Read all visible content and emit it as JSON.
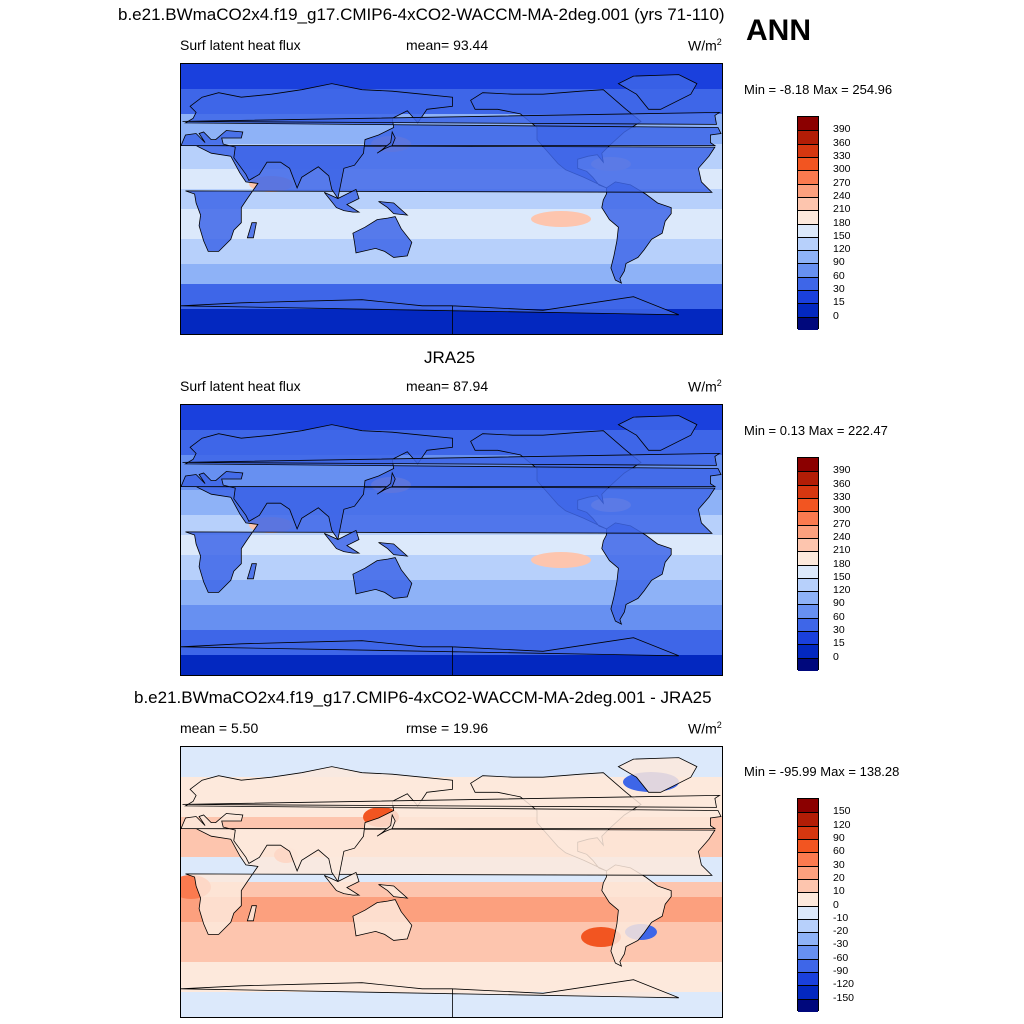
{
  "season": "ANN",
  "panels": [
    {
      "title": "b.e21.BWmaCO2x4.f19_g17.CMIP6-4xCO2-WACCM-MA-2deg.001 (yrs 71-110)",
      "left_label": "Surf latent heat flux",
      "center_label": "mean=  93.44",
      "units": "W/m",
      "units_sup": "2",
      "minmax": "Min =  -8.18 Max = 254.96",
      "colorbar_levels": [
        "390",
        "360",
        "330",
        "300",
        "270",
        "240",
        "210",
        "180",
        "150",
        "120",
        "90",
        "60",
        "30",
        "15",
        "0"
      ],
      "colorbar_colors": [
        "#8b0000",
        "#b21d06",
        "#d63710",
        "#f25521",
        "#fb7a4f",
        "#fca07e",
        "#fdc5ae",
        "#fde9dc",
        "#dce9fb",
        "#b7d0fb",
        "#8eb2f7",
        "#6790f1",
        "#3e66e8",
        "#1a40dd",
        "#0328c0",
        "#00087c"
      ],
      "scheme": "model"
    },
    {
      "title": "JRA25",
      "left_label": "Surf latent heat flux",
      "center_label": "mean=  87.94",
      "units": "W/m",
      "units_sup": "2",
      "minmax": "Min =   0.13 Max = 222.47",
      "colorbar_levels": [
        "390",
        "360",
        "330",
        "300",
        "270",
        "240",
        "210",
        "180",
        "150",
        "120",
        "90",
        "60",
        "30",
        "15",
        "0"
      ],
      "colorbar_colors": [
        "#8b0000",
        "#b21d06",
        "#d63710",
        "#f25521",
        "#fb7a4f",
        "#fca07e",
        "#fdc5ae",
        "#fde9dc",
        "#dce9fb",
        "#b7d0fb",
        "#8eb2f7",
        "#6790f1",
        "#3e66e8",
        "#1a40dd",
        "#0328c0",
        "#00087c"
      ],
      "scheme": "obs"
    },
    {
      "title": "b.e21.BWmaCO2x4.f19_g17.CMIP6-4xCO2-WACCM-MA-2deg.001 - JRA25",
      "left_label": "mean =   5.50",
      "center_label": "rmse =  19.96",
      "units": "W/m",
      "units_sup": "2",
      "minmax": "Min = -95.99 Max = 138.28",
      "colorbar_levels": [
        "150",
        "120",
        "90",
        "60",
        "30",
        "20",
        "10",
        "0",
        "-10",
        "-20",
        "-30",
        "-60",
        "-90",
        "-120",
        "-150"
      ],
      "colorbar_colors": [
        "#8b0000",
        "#b21d06",
        "#d63710",
        "#f25521",
        "#fb7a4f",
        "#fca07e",
        "#fdc5ae",
        "#fde9dc",
        "#dce9fb",
        "#b7d0fb",
        "#8eb2f7",
        "#6790f1",
        "#3e66e8",
        "#1a40dd",
        "#0328c0",
        "#00087c"
      ],
      "scheme": "diff"
    }
  ]
}
